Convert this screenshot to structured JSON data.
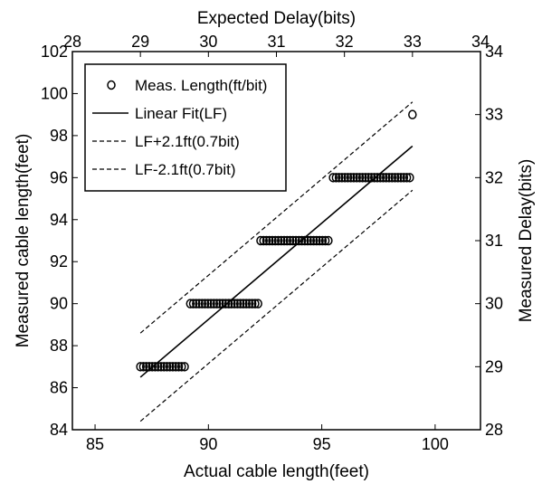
{
  "chart_data": {
    "type": "scatter",
    "top_axis_label": "Expected Delay(bits)",
    "xlabel": "Actual cable length(feet)",
    "ylabel": "Measured cable length(feet)",
    "right_axis_label": "Measured Delay(bits)",
    "xlim": [
      84,
      102
    ],
    "ylim": [
      84,
      102
    ],
    "x_ticks": [
      "85",
      "90",
      "95",
      "100"
    ],
    "x_tick_values": [
      85,
      90,
      95,
      100
    ],
    "y_ticks": [
      "84",
      "86",
      "88",
      "90",
      "92",
      "94",
      "96",
      "98",
      "100",
      "102"
    ],
    "y_tick_values": [
      84,
      86,
      88,
      90,
      92,
      94,
      96,
      98,
      100,
      102
    ],
    "top_ticks": [
      "28",
      "29",
      "30",
      "31",
      "32",
      "33",
      "34"
    ],
    "top_tick_values": [
      28,
      29,
      30,
      31,
      32,
      33,
      34
    ],
    "right_ticks": [
      "28",
      "29",
      "30",
      "31",
      "32",
      "33",
      "34"
    ],
    "right_tick_values": [
      28,
      29,
      30,
      31,
      32,
      33,
      34
    ],
    "legend_position": "top-left",
    "series": [
      {
        "name": "Meas. Length(ft/bit)",
        "kind": "markers",
        "groups": [
          {
            "y": 87,
            "x_from": 87.0,
            "x_to": 89.0
          },
          {
            "y": 90,
            "x_from": 89.2,
            "x_to": 92.2
          },
          {
            "y": 93,
            "x_from": 92.3,
            "x_to": 95.3
          },
          {
            "y": 96,
            "x_from": 95.5,
            "x_to": 98.9
          }
        ],
        "extra_points": [
          [
            99.0,
            99.0
          ]
        ]
      },
      {
        "name": "Linear Fit(LF)",
        "kind": "solid",
        "x": [
          87,
          99
        ],
        "y": [
          86.5,
          97.5
        ]
      },
      {
        "name": "LF+2.1ft(0.7bit)",
        "kind": "dashed",
        "x": [
          87,
          99
        ],
        "y": [
          88.6,
          99.6
        ]
      },
      {
        "name": "LF-2.1ft(0.7bit)",
        "kind": "dashed",
        "x": [
          87,
          99
        ],
        "y": [
          84.4,
          95.4
        ]
      }
    ]
  }
}
